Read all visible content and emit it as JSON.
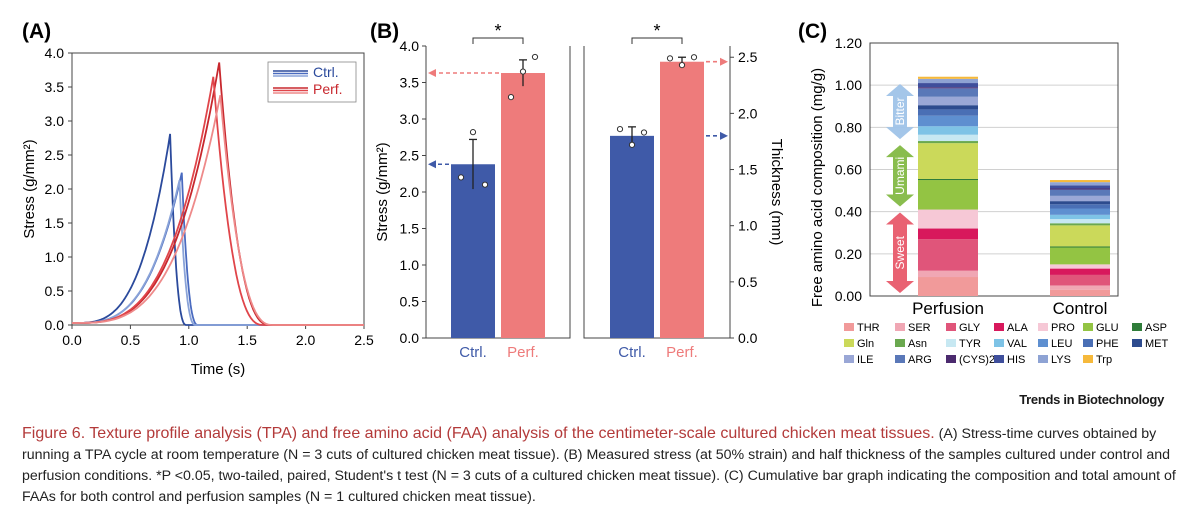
{
  "panels": {
    "a": {
      "letter": "(A)",
      "type": "line",
      "xlabel": "Time (s)",
      "ylabel": "Stress (g/mm²)",
      "xlim": [
        0,
        2.5
      ],
      "ylim": [
        0,
        4.0
      ],
      "xticks": [
        "0.0",
        "0.5",
        "1.0",
        "1.5",
        "2.0",
        "2.5"
      ],
      "yticks": [
        "0.0",
        "0.5",
        "1.0",
        "1.5",
        "2.0",
        "2.5",
        "3.0",
        "3.5",
        "4.0"
      ],
      "legend": [
        "Ctrl.",
        "Perf."
      ],
      "legend_position": "top-right",
      "colors": {
        "ctrl": [
          "#2b4a9c",
          "#4a6bc0",
          "#8aa3d8"
        ],
        "perf": [
          "#c8282e",
          "#e0454a",
          "#ee8a8a"
        ]
      },
      "series": [
        {
          "name": "Ctrl.",
          "group": "ctrl",
          "peak_time": 0.84,
          "peak_stress": 2.81,
          "end_time": 0.98
        },
        {
          "name": "Ctrl.",
          "group": "ctrl",
          "peak_time": 0.94,
          "peak_stress": 2.24,
          "end_time": 1.08
        },
        {
          "name": "Ctrl.",
          "group": "ctrl",
          "peak_time": 0.92,
          "peak_stress": 2.13,
          "end_time": 1.06
        },
        {
          "name": "Perf.",
          "group": "perf",
          "peak_time": 1.26,
          "peak_stress": 3.86,
          "end_time": 1.7
        },
        {
          "name": "Perf.",
          "group": "perf",
          "peak_time": 1.21,
          "peak_stress": 3.65,
          "end_time": 1.64
        },
        {
          "name": "Perf.",
          "group": "perf",
          "peak_time": 1.27,
          "peak_stress": 3.38,
          "end_time": 1.72
        }
      ]
    },
    "b": {
      "letter": "(B)",
      "type": "bar",
      "categories": [
        "Ctrl.",
        "Perf."
      ],
      "significance": "*",
      "colors": {
        "ctrl": "#3f5aa8",
        "perf": "#ee7b7b"
      },
      "left": {
        "ylabel": "Stress (g/mm²)",
        "ylim": [
          0,
          4.0
        ],
        "yticks": [
          "0.0",
          "0.5",
          "1.0",
          "1.5",
          "2.0",
          "2.5",
          "3.0",
          "3.5",
          "4.0"
        ],
        "values": [
          2.38,
          3.63
        ],
        "errors": [
          0.34,
          0.18
        ],
        "points": [
          [
            2.2,
            2.82,
            2.1
          ],
          [
            3.3,
            3.65,
            3.85
          ]
        ]
      },
      "right": {
        "ylabel": "Thickness (mm)",
        "ylim": [
          0,
          2.6
        ],
        "yticks": [
          "0.0",
          "0.5",
          "1.0",
          "1.5",
          "2.0",
          "2.5"
        ],
        "values": [
          1.8,
          2.46
        ],
        "errors": [
          0.08,
          0.04
        ],
        "points": [
          [
            1.86,
            1.72,
            1.83
          ],
          [
            2.49,
            2.43,
            2.5
          ]
        ]
      }
    },
    "c": {
      "letter": "(C)",
      "type": "bar",
      "stacked": true,
      "ylabel": "Free amino acid composition (mg/g)",
      "ylim": [
        0,
        1.2
      ],
      "yticks": [
        "0.00",
        "0.20",
        "0.40",
        "0.60",
        "0.80",
        "1.00",
        "1.20"
      ],
      "categories": [
        "Perfusion",
        "Control"
      ],
      "taste_groups": [
        "Sweet",
        "Umami",
        "Bitter"
      ],
      "series": [
        {
          "name": "THR",
          "color": "#f19a9a",
          "values": [
            0.09,
            0.03
          ]
        },
        {
          "name": "SER",
          "color": "#f0a7b4",
          "values": [
            0.03,
            0.02
          ]
        },
        {
          "name": "GLY",
          "color": "#e0557a",
          "values": [
            0.15,
            0.05
          ]
        },
        {
          "name": "ALA",
          "color": "#d8185c",
          "values": [
            0.05,
            0.03
          ]
        },
        {
          "name": "PRO",
          "color": "#f6c8d6",
          "values": [
            0.09,
            0.02
          ]
        },
        {
          "name": "GLU",
          "color": "#93c443",
          "values": [
            0.14,
            0.08
          ]
        },
        {
          "name": "ASP",
          "color": "#2f7d3a",
          "values": [
            0.005,
            0.005
          ]
        },
        {
          "name": "Gln",
          "color": "#cbd95a",
          "values": [
            0.17,
            0.1
          ]
        },
        {
          "name": "Asn",
          "color": "#6aa84f",
          "values": [
            0.01,
            0.01
          ]
        },
        {
          "name": "TYR",
          "color": "#c7e8f2",
          "values": [
            0.03,
            0.02
          ]
        },
        {
          "name": "VAL",
          "color": "#7ec3e6",
          "values": [
            0.04,
            0.02
          ]
        },
        {
          "name": "LEU",
          "color": "#5e8fd0",
          "values": [
            0.05,
            0.03
          ]
        },
        {
          "name": "PHE",
          "color": "#4a6fb5",
          "values": [
            0.03,
            0.02
          ]
        },
        {
          "name": "MET",
          "color": "#2d4b8e",
          "values": [
            0.02,
            0.015
          ]
        },
        {
          "name": "ILE",
          "color": "#9aa7d6",
          "values": [
            0.04,
            0.025
          ]
        },
        {
          "name": "ARG",
          "color": "#5a78b8",
          "values": [
            0.04,
            0.03
          ]
        },
        {
          "name": "(CYS)2",
          "color": "#4b2a6e",
          "values": [
            0.005,
            0.005
          ]
        },
        {
          "name": "HIS",
          "color": "#3f4f9c",
          "values": [
            0.02,
            0.015
          ]
        },
        {
          "name": "LYS",
          "color": "#8ea3d4",
          "values": [
            0.02,
            0.015
          ]
        },
        {
          "name": "Trp",
          "color": "#f6b93b",
          "values": [
            0.01,
            0.01
          ]
        }
      ]
    }
  },
  "publisher": "Trends in Biotechnology",
  "caption": {
    "title": "Figure 6. Texture profile analysis (TPA) and free amino acid (FAA) analysis of the centimeter-scale cultured chicken meat tissues.",
    "body": "(A) Stress-time curves obtained by running a TPA cycle at room temperature (N = 3 cuts of cultured chicken meat tissue). (B) Measured stress (at 50% strain) and half thickness of the samples cultured under control and perfusion conditions. *P <0.05, two-tailed, paired, Student's t test (N = 3 cuts of a cultured chicken meat tissue). (C) Cumulative bar graph indicating the composition and total amount of FAAs for both control and perfusion samples (N = 1 cultured chicken meat tissue)."
  }
}
